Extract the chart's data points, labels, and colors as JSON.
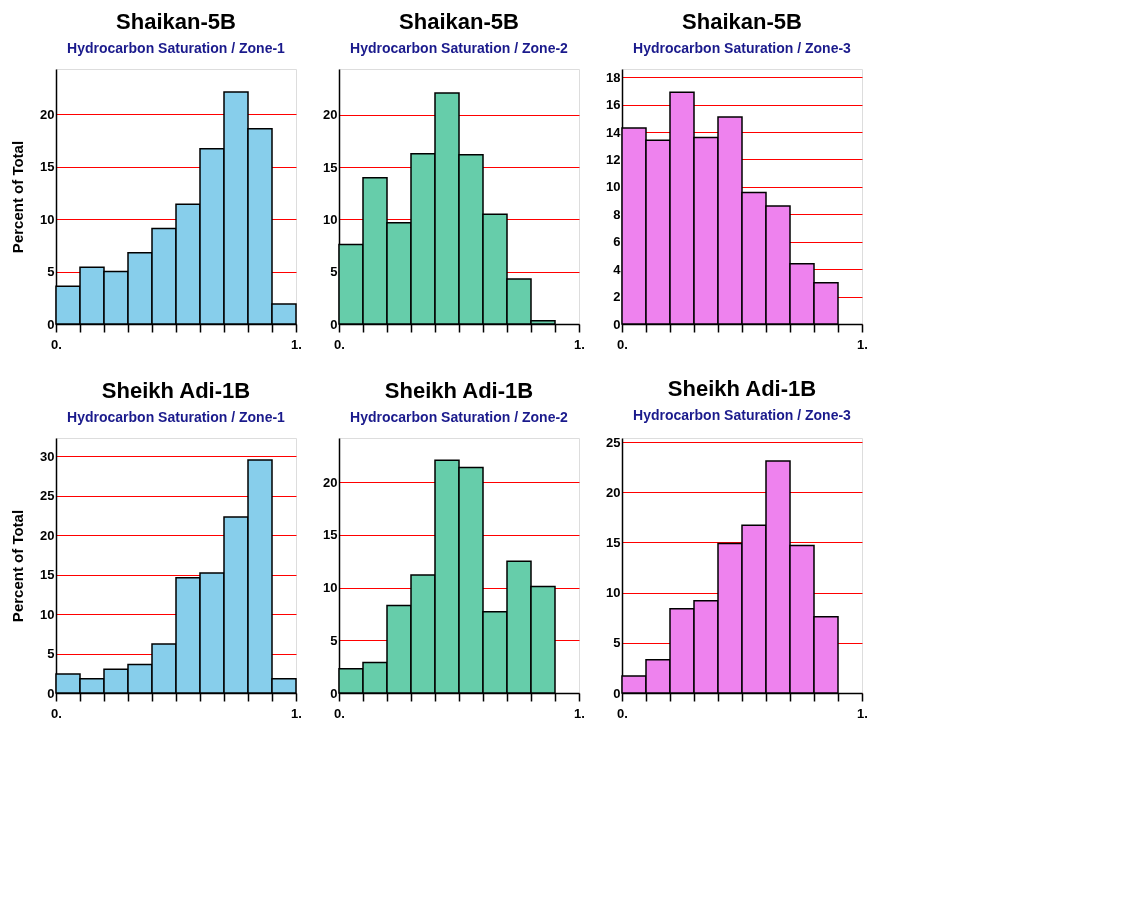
{
  "chart_data": [
    {
      "type": "histogram",
      "title": "Shaikan-5B",
      "subtitle": "Hydrocarbon Saturation / Zone-1",
      "ylabel": "Percent of Total",
      "color": "#87ceeb",
      "bins": [
        0,
        0.1,
        0.2,
        0.3,
        0.4,
        0.5,
        0.6,
        0.7,
        0.8,
        0.9,
        1
      ],
      "values": [
        3.6,
        5.4,
        5.0,
        6.8,
        9.1,
        11.4,
        16.7,
        22.1,
        18.6,
        1.9
      ],
      "xlim": [
        0,
        1
      ],
      "xticks": [
        {
          "value": 0,
          "label": "0."
        },
        {
          "value": 0.1,
          "label": null
        },
        {
          "value": 0.2,
          "label": null
        },
        {
          "value": 0.3,
          "label": null
        },
        {
          "value": 0.4,
          "label": null
        },
        {
          "value": 0.5,
          "label": null
        },
        {
          "value": 0.6,
          "label": null
        },
        {
          "value": 0.7,
          "label": null
        },
        {
          "value": 0.8,
          "label": null
        },
        {
          "value": 0.9,
          "label": null
        },
        {
          "value": 1,
          "label": "1."
        }
      ],
      "ylim": [
        0,
        24.3
      ],
      "yticks": [
        0,
        5,
        10,
        15,
        20
      ],
      "grid": "y"
    },
    {
      "type": "histogram",
      "title": "Shaikan-5B",
      "subtitle": "Hydrocarbon Saturation / Zone-2",
      "color": "#66cdaa",
      "bins": [
        0,
        0.1,
        0.2,
        0.3,
        0.4,
        0.5,
        0.6,
        0.7,
        0.8,
        0.9,
        1
      ],
      "values": [
        7.6,
        14.0,
        9.7,
        16.3,
        22.1,
        16.2,
        10.5,
        4.3,
        0.3,
        0
      ],
      "xlim": [
        0,
        1
      ],
      "xticks": [
        {
          "value": 0,
          "label": "0."
        },
        {
          "value": 0.1,
          "label": null
        },
        {
          "value": 0.2,
          "label": null
        },
        {
          "value": 0.3,
          "label": null
        },
        {
          "value": 0.4,
          "label": null
        },
        {
          "value": 0.5,
          "label": null
        },
        {
          "value": 0.6,
          "label": null
        },
        {
          "value": 0.7,
          "label": null
        },
        {
          "value": 0.8,
          "label": null
        },
        {
          "value": 0.9,
          "label": null
        },
        {
          "value": 1,
          "label": "1."
        }
      ],
      "ylim": [
        0,
        24.4
      ],
      "yticks": [
        0,
        5,
        10,
        15,
        20
      ],
      "grid": "y"
    },
    {
      "type": "histogram",
      "title": "Shaikan-5B",
      "subtitle": "Hydrocarbon Saturation / Zone-3",
      "color": "#ee82ee",
      "bins": [
        0,
        0.1,
        0.2,
        0.3,
        0.4,
        0.5,
        0.6,
        0.7,
        0.8,
        0.9,
        1
      ],
      "values": [
        14.3,
        13.4,
        16.9,
        13.6,
        15.1,
        9.6,
        8.6,
        4.4,
        3.0,
        0
      ],
      "xlim": [
        0,
        1
      ],
      "xticks": [
        {
          "value": 0,
          "label": "0."
        },
        {
          "value": 0.1,
          "label": null
        },
        {
          "value": 0.2,
          "label": null
        },
        {
          "value": 0.3,
          "label": null
        },
        {
          "value": 0.4,
          "label": null
        },
        {
          "value": 0.5,
          "label": null
        },
        {
          "value": 0.6,
          "label": null
        },
        {
          "value": 0.7,
          "label": null
        },
        {
          "value": 0.8,
          "label": null
        },
        {
          "value": 0.9,
          "label": null
        },
        {
          "value": 1,
          "label": "1."
        }
      ],
      "ylim": [
        0,
        18.6
      ],
      "yticks": [
        0,
        2,
        4,
        6,
        8,
        10,
        12,
        14,
        16,
        18
      ],
      "grid": "y"
    },
    {
      "type": "histogram",
      "title": "Sheikh Adi-1B",
      "subtitle": "Hydrocarbon Saturation / Zone-1",
      "ylabel": "Percent of Total",
      "color": "#87ceeb",
      "bins": [
        0,
        0.1,
        0.2,
        0.3,
        0.4,
        0.5,
        0.6,
        0.7,
        0.8,
        0.9,
        1
      ],
      "values": [
        2.4,
        1.8,
        3.0,
        3.6,
        6.2,
        14.6,
        15.2,
        22.3,
        29.5,
        1.8
      ],
      "xlim": [
        0,
        1
      ],
      "xticks": [
        {
          "value": 0,
          "label": "0."
        },
        {
          "value": 0.1,
          "label": null
        },
        {
          "value": 0.2,
          "label": null
        },
        {
          "value": 0.3,
          "label": null
        },
        {
          "value": 0.4,
          "label": null
        },
        {
          "value": 0.5,
          "label": null
        },
        {
          "value": 0.6,
          "label": null
        },
        {
          "value": 0.7,
          "label": null
        },
        {
          "value": 0.8,
          "label": null
        },
        {
          "value": 0.9,
          "label": null
        },
        {
          "value": 1,
          "label": "1."
        }
      ],
      "ylim": [
        0,
        32.3
      ],
      "yticks": [
        0,
        5,
        10,
        15,
        20,
        25,
        30
      ],
      "grid": "y"
    },
    {
      "type": "histogram",
      "title": "Sheikh Adi-1B",
      "subtitle": "Hydrocarbon Saturation / Zone-2",
      "color": "#66cdaa",
      "bins": [
        0,
        0.1,
        0.2,
        0.3,
        0.4,
        0.5,
        0.6,
        0.7,
        0.8,
        0.9,
        1
      ],
      "values": [
        2.3,
        2.9,
        8.3,
        11.2,
        22.1,
        21.4,
        7.7,
        12.5,
        10.1,
        0
      ],
      "xlim": [
        0,
        1
      ],
      "xticks": [
        {
          "value": 0,
          "label": "0."
        },
        {
          "value": 0.1,
          "label": null
        },
        {
          "value": 0.2,
          "label": null
        },
        {
          "value": 0.3,
          "label": null
        },
        {
          "value": 0.4,
          "label": null
        },
        {
          "value": 0.5,
          "label": null
        },
        {
          "value": 0.6,
          "label": null
        },
        {
          "value": 0.7,
          "label": null
        },
        {
          "value": 0.8,
          "label": null
        },
        {
          "value": 0.9,
          "label": null
        },
        {
          "value": 1,
          "label": "1."
        }
      ],
      "ylim": [
        0,
        24.2
      ],
      "yticks": [
        0,
        5,
        10,
        15,
        20
      ],
      "grid": "y"
    },
    {
      "type": "histogram",
      "title": "Sheikh Adi-1B",
      "subtitle": "Hydrocarbon Saturation / Zone-3",
      "color": "#ee82ee",
      "bins": [
        0,
        0.1,
        0.2,
        0.3,
        0.4,
        0.5,
        0.6,
        0.7,
        0.8,
        0.9,
        1
      ],
      "values": [
        1.7,
        3.3,
        8.4,
        9.2,
        14.9,
        16.7,
        23.1,
        14.7,
        7.6,
        0
      ],
      "xlim": [
        0,
        1
      ],
      "xticks": [
        {
          "value": 0,
          "label": "0."
        },
        {
          "value": 0.1,
          "label": null
        },
        {
          "value": 0.2,
          "label": null
        },
        {
          "value": 0.3,
          "label": null
        },
        {
          "value": 0.4,
          "label": null
        },
        {
          "value": 0.5,
          "label": null
        },
        {
          "value": 0.6,
          "label": null
        },
        {
          "value": 0.7,
          "label": null
        },
        {
          "value": 0.8,
          "label": null
        },
        {
          "value": 0.9,
          "label": null
        },
        {
          "value": 1,
          "label": "1."
        }
      ],
      "ylim": [
        0,
        25.4
      ],
      "yticks": [
        0,
        5,
        10,
        15,
        20,
        25
      ],
      "grid": "y"
    }
  ]
}
